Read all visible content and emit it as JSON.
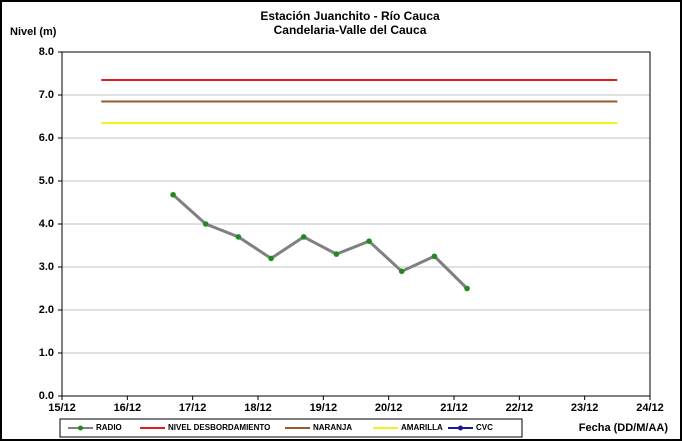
{
  "chart_data": {
    "type": "line",
    "title": "Estación Juanchito - Río Cauca",
    "subtitle": "Candelaria-Valle del Cauca",
    "ylabel": "Nivel (m)",
    "xlabel": "Fecha (DD/M/AA)",
    "xlim": [
      15,
      24
    ],
    "xticks": [
      {
        "value": 15,
        "label": "15/12"
      },
      {
        "value": 16,
        "label": "16/12"
      },
      {
        "value": 17,
        "label": "17/12"
      },
      {
        "value": 18,
        "label": "18/12"
      },
      {
        "value": 19,
        "label": "19/12"
      },
      {
        "value": 20,
        "label": "20/12"
      },
      {
        "value": 21,
        "label": "21/12"
      },
      {
        "value": 22,
        "label": "22/12"
      },
      {
        "value": 23,
        "label": "23/12"
      },
      {
        "value": 24,
        "label": "24/12"
      }
    ],
    "ylim": [
      0,
      8
    ],
    "yticks": [
      {
        "value": 0,
        "label": "0.0"
      },
      {
        "value": 1,
        "label": "1.0"
      },
      {
        "value": 2,
        "label": "2.0"
      },
      {
        "value": 3,
        "label": "3.0"
      },
      {
        "value": 4,
        "label": "4.0"
      },
      {
        "value": 5,
        "label": "5.0"
      },
      {
        "value": 6,
        "label": "6.0"
      },
      {
        "value": 7,
        "label": "7.0"
      },
      {
        "value": 8,
        "label": "8.0"
      }
    ],
    "grid": true,
    "legend": "bottom",
    "series": [
      {
        "name": "RADIO",
        "color": "#808080",
        "marker_color": "#1e8c1e",
        "x": [
          16.7,
          17.2,
          17.7,
          18.2,
          18.7,
          19.2,
          19.7,
          20.2,
          20.7,
          21.2
        ],
        "values": [
          4.68,
          4.0,
          3.7,
          3.2,
          3.7,
          3.3,
          3.6,
          2.9,
          3.25,
          2.5
        ]
      },
      {
        "name": "NIVEL DESBORDAMIENTO",
        "color": "#e02020",
        "x": [
          15.6,
          23.5
        ],
        "values": [
          7.35,
          7.35
        ]
      },
      {
        "name": "NARANJA",
        "color": "#9c5a2a",
        "x": [
          15.6,
          23.5
        ],
        "values": [
          6.85,
          6.85
        ]
      },
      {
        "name": "AMARILLA",
        "color": "#f5f020",
        "x": [
          15.6,
          23.5
        ],
        "values": [
          6.35,
          6.35
        ]
      },
      {
        "name": "CVC",
        "color": "#1a1aa0",
        "marker_color": "#1a1aa0",
        "x": [],
        "values": []
      }
    ]
  }
}
